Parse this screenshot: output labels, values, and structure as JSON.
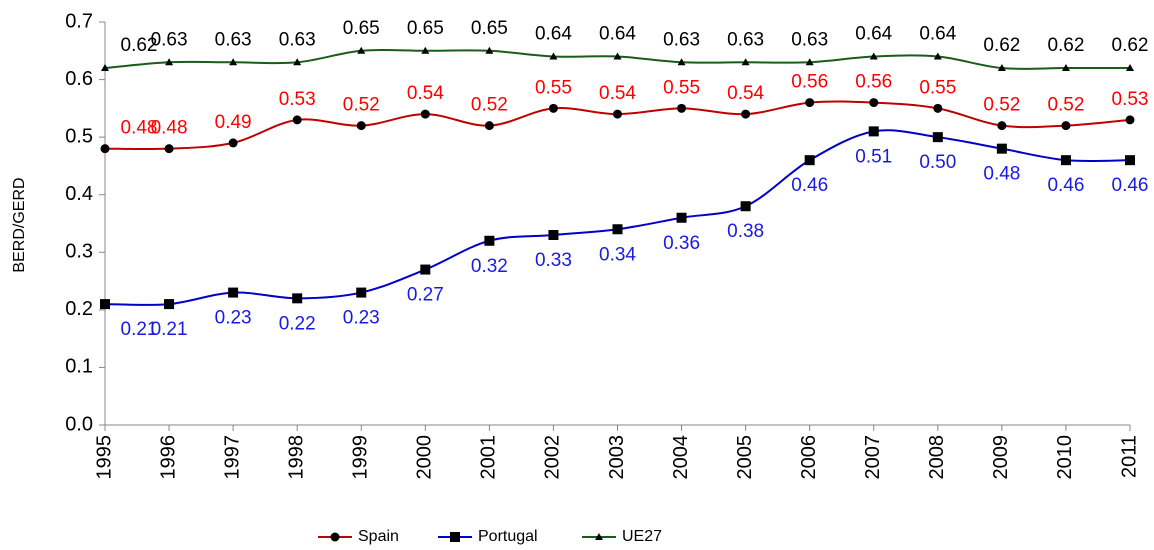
{
  "chart_data": {
    "type": "line",
    "y_label": "BERD/GERD",
    "x": [
      1995,
      1996,
      1997,
      1998,
      1999,
      2000,
      2001,
      2002,
      2003,
      2004,
      2005,
      2006,
      2007,
      2008,
      2009,
      2010,
      2011
    ],
    "xlim": [
      1995,
      2011
    ],
    "ylim": [
      0,
      0.7
    ],
    "yticks": [
      {
        "value": 0,
        "label": "0.0"
      },
      0.1,
      0.2,
      0.3,
      0.4,
      0.5,
      0.6,
      0.7
    ],
    "legend": "bottom",
    "series": [
      {
        "name": "Spain",
        "color": "#c00000",
        "marker": "circle",
        "values": [
          0.48,
          0.48,
          0.49,
          0.53,
          0.52,
          0.54,
          0.52,
          0.55,
          0.54,
          0.55,
          0.54,
          0.56,
          0.56,
          0.55,
          0.52,
          0.52,
          0.53
        ],
        "value_labels": [
          "0.48",
          "0.48",
          "0.49",
          "0.53",
          "0.52",
          "0.54",
          "0.52",
          "0.55",
          "0.54",
          "0.55",
          "0.54",
          "0.56",
          "0.56",
          "0.55",
          "0.52",
          "0.52",
          "0.53"
        ]
      },
      {
        "name": "Portugal",
        "color": "#0000c8",
        "marker": "square",
        "values": [
          0.21,
          0.21,
          0.23,
          0.22,
          0.23,
          0.27,
          0.32,
          0.33,
          0.34,
          0.36,
          0.38,
          0.46,
          0.51,
          0.5,
          0.48,
          0.46,
          0.46
        ],
        "value_labels": [
          "0.21",
          "0.21",
          "0.23",
          "0.22",
          "0.23",
          "0.27",
          "0.32",
          "0.33",
          "0.34",
          "0.36",
          "0.38",
          "0.46",
          "0.51",
          "0.50",
          "0.48",
          "0.46",
          "0.46"
        ]
      },
      {
        "name": "UE27",
        "color": "#1a5c1a",
        "marker": "triangle",
        "values": [
          0.62,
          0.63,
          0.63,
          0.63,
          0.65,
          0.65,
          0.65,
          0.64,
          0.64,
          0.63,
          0.63,
          0.63,
          0.64,
          0.64,
          0.62,
          0.62,
          0.62
        ],
        "value_labels": [
          "0.62",
          "0.63",
          "0.63",
          "0.63",
          "0.65",
          "0.65",
          "0.65",
          "0.64",
          "0.64",
          "0.63",
          "0.63",
          "0.63",
          "0.64",
          "0.64",
          "0.62",
          "0.62",
          "0.62"
        ]
      }
    ]
  }
}
